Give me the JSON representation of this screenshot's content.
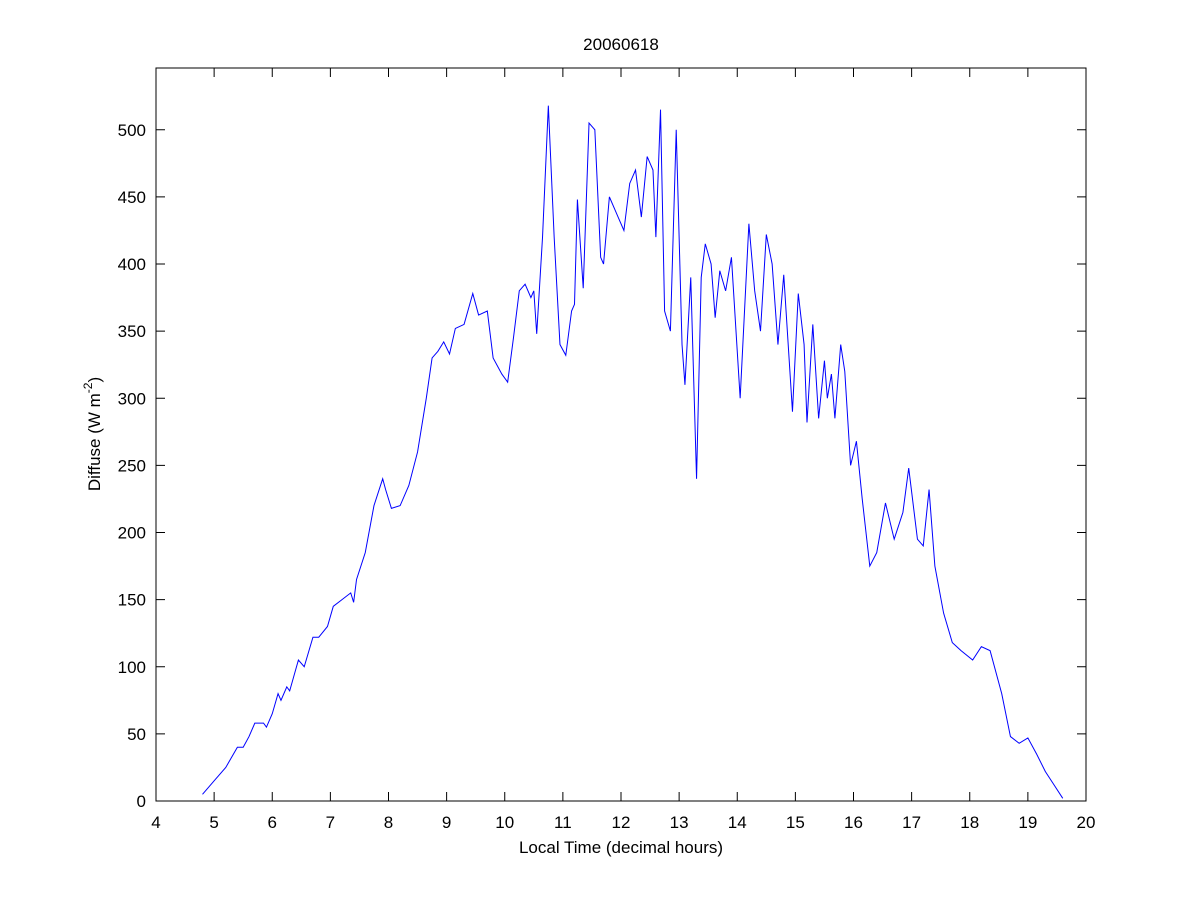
{
  "chart_data": {
    "type": "line",
    "title": "20060618",
    "x_label": "Local Time (decimal hours)",
    "y_label": [
      "Diffuse (W m",
      "-2",
      ")"
    ],
    "x": [
      4.8,
      5.0,
      5.2,
      5.4,
      5.5,
      5.6,
      5.7,
      5.85,
      5.9,
      6.0,
      6.1,
      6.15,
      6.25,
      6.3,
      6.45,
      6.55,
      6.7,
      6.8,
      6.95,
      7.05,
      7.2,
      7.35,
      7.4,
      7.45,
      7.6,
      7.75,
      7.9,
      7.95,
      8.05,
      8.2,
      8.35,
      8.5,
      8.65,
      8.75,
      8.85,
      8.95,
      9.05,
      9.15,
      9.3,
      9.45,
      9.55,
      9.7,
      9.8,
      9.95,
      10.05,
      10.15,
      10.25,
      10.35,
      10.45,
      10.5,
      10.55,
      10.65,
      10.75,
      10.85,
      10.95,
      11.05,
      11.15,
      11.2,
      11.25,
      11.35,
      11.45,
      11.55,
      11.65,
      11.7,
      11.8,
      11.9,
      11.95,
      12.05,
      12.15,
      12.25,
      12.35,
      12.45,
      12.55,
      12.6,
      12.68,
      12.75,
      12.85,
      12.95,
      13.05,
      13.1,
      13.2,
      13.3,
      13.38,
      13.45,
      13.55,
      13.62,
      13.7,
      13.8,
      13.9,
      14.05,
      14.2,
      14.3,
      14.4,
      14.5,
      14.6,
      14.7,
      14.8,
      14.95,
      15.05,
      15.15,
      15.2,
      15.3,
      15.4,
      15.5,
      15.55,
      15.62,
      15.68,
      15.78,
      15.85,
      15.95,
      16.05,
      16.15,
      16.28,
      16.4,
      16.55,
      16.7,
      16.85,
      16.95,
      17.1,
      17.2,
      17.3,
      17.4,
      17.55,
      17.7,
      17.85,
      18.05,
      18.2,
      18.35,
      18.55,
      18.7,
      18.85,
      19.0,
      19.15,
      19.3,
      19.45,
      19.6
    ],
    "series": [
      {
        "color": "#0000ff",
        "values": [
          5,
          15,
          25,
          40,
          40,
          48,
          58,
          58,
          55,
          65,
          80,
          75,
          85,
          82,
          105,
          100,
          122,
          122,
          130,
          145,
          150,
          155,
          148,
          165,
          185,
          220,
          240,
          232,
          218,
          220,
          235,
          260,
          300,
          330,
          335,
          342,
          333,
          352,
          355,
          378,
          362,
          365,
          330,
          318,
          312,
          345,
          380,
          385,
          375,
          380,
          348,
          420,
          518,
          420,
          340,
          332,
          365,
          370,
          448,
          382,
          505,
          500,
          405,
          400,
          450,
          440,
          435,
          425,
          460,
          470,
          435,
          480,
          470,
          420,
          515,
          365,
          350,
          500,
          340,
          310,
          390,
          240,
          390,
          415,
          400,
          360,
          395,
          380,
          405,
          300,
          430,
          380,
          350,
          422,
          400,
          340,
          392,
          290,
          378,
          340,
          282,
          355,
          285,
          328,
          300,
          318,
          285,
          340,
          320,
          250,
          268,
          225,
          175,
          185,
          222,
          195,
          215,
          248,
          195,
          190,
          232,
          175,
          140,
          118,
          112,
          105,
          115,
          112,
          80,
          48,
          43,
          47,
          35,
          22,
          12,
          2
        ]
      }
    ],
    "xlim": [
      4,
      20
    ],
    "xticks": [
      4,
      5,
      6,
      7,
      8,
      9,
      10,
      11,
      12,
      13,
      14,
      15,
      16,
      17,
      18,
      19,
      20
    ],
    "ylim": [
      0,
      546
    ],
    "yticks": [
      0,
      50,
      100,
      150,
      200,
      250,
      300,
      350,
      400,
      450,
      500
    ]
  }
}
